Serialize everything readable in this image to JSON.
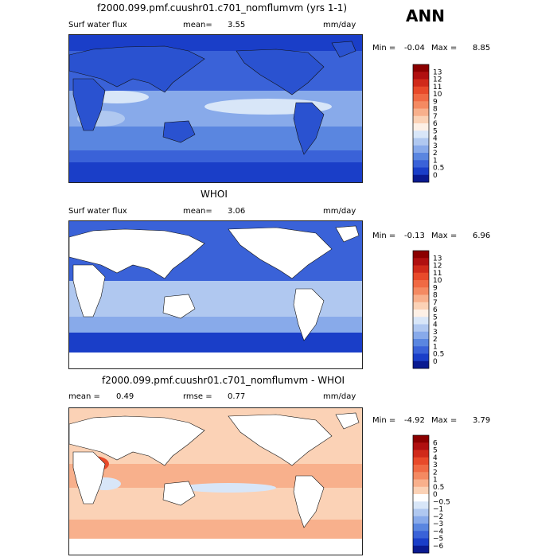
{
  "season": "ANN",
  "panels": [
    {
      "title": "f2000.099.pmf.cuushr01.c701_nomflumvm (yrs 1-1)",
      "left_label": "Surf water flux",
      "stat_label": "mean=",
      "stat_value": "3.55",
      "units": "mm/day",
      "min_label": "Min =",
      "min_value": "-0.04",
      "max_label": "Max =",
      "max_value": "8.85",
      "colorbar": {
        "labels": [
          "13",
          "12",
          "11",
          "10",
          "9",
          "8",
          "7",
          "6",
          "5",
          "4",
          "3",
          "2",
          "1",
          "0.5",
          "0"
        ],
        "colors": [
          "#8b0000",
          "#b01010",
          "#d02a1a",
          "#e84a2a",
          "#f06a44",
          "#f48a62",
          "#f8b08c",
          "#fbd2b6",
          "#fdf0e6",
          "#d8e6f8",
          "#b0c8f0",
          "#88aaea",
          "#5a86e0",
          "#3a62d8",
          "#1a3ec8",
          "#0a1a90"
        ]
      },
      "base_color": "#3a62d8",
      "land_filled": true
    },
    {
      "title": "WHOI",
      "left_label": "Surf water flux",
      "stat_label": "mean=",
      "stat_value": "3.06",
      "units": "mm/day",
      "min_label": "Min =",
      "min_value": "-0.13",
      "max_label": "Max =",
      "max_value": "6.96",
      "colorbar": {
        "labels": [
          "13",
          "12",
          "11",
          "10",
          "9",
          "8",
          "7",
          "6",
          "5",
          "4",
          "3",
          "2",
          "1",
          "0.5",
          "0"
        ],
        "colors": [
          "#8b0000",
          "#b01010",
          "#d02a1a",
          "#e84a2a",
          "#f06a44",
          "#f48a62",
          "#f8b08c",
          "#fbd2b6",
          "#fdf0e6",
          "#d8e6f8",
          "#b0c8f0",
          "#88aaea",
          "#5a86e0",
          "#3a62d8",
          "#1a3ec8",
          "#0a1a90"
        ]
      },
      "base_color": "#3a62d8",
      "land_filled": false
    },
    {
      "title": "f2000.099.pmf.cuushr01.c701_nomflumvm - WHOI",
      "left_label": "mean =",
      "left_value": "0.49",
      "stat_label": "rmse =",
      "stat_value": "0.77",
      "units": "mm/day",
      "min_label": "Min =",
      "min_value": "-4.92",
      "max_label": "Max =",
      "max_value": "3.79",
      "colorbar": {
        "labels": [
          "6",
          "5",
          "4",
          "3",
          "2",
          "1",
          "0.5",
          "0",
          "−0.5",
          "−1",
          "−2",
          "−3",
          "−4",
          "−5",
          "−6"
        ],
        "colors": [
          "#8b0000",
          "#b01010",
          "#d02a1a",
          "#e84a2a",
          "#f06a44",
          "#f48a62",
          "#f8b08c",
          "#fbd2b6",
          "#ffffff",
          "#d8e6f8",
          "#b0c8f0",
          "#88aaea",
          "#5a86e0",
          "#3a62d8",
          "#1a3ec8",
          "#0a1a90"
        ]
      },
      "base_color": "#f8c4aa",
      "land_filled": false
    }
  ]
}
